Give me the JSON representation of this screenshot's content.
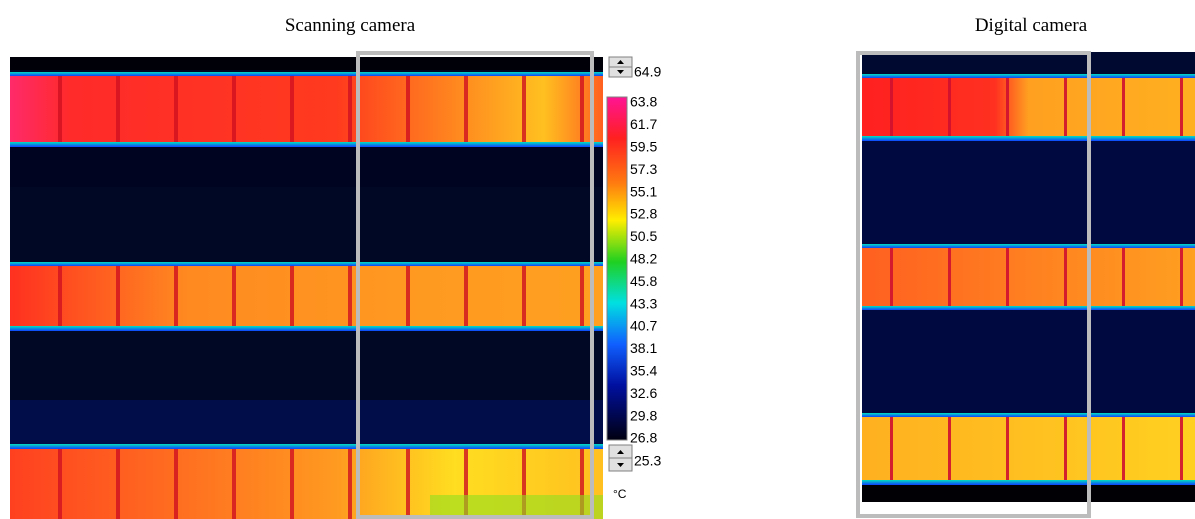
{
  "left_panel": {
    "title": "Scanning camera"
  },
  "right_panel": {
    "title": "Digital camera"
  },
  "scale": {
    "max": "64.9",
    "labels": [
      "63.8",
      "61.7",
      "59.5",
      "57.3",
      "55.1",
      "52.8",
      "50.5",
      "48.2",
      "45.8",
      "43.3",
      "40.7",
      "38.1",
      "35.4",
      "32.6",
      "29.8",
      "26.8"
    ],
    "min": "25.3",
    "unit": "°C"
  }
}
